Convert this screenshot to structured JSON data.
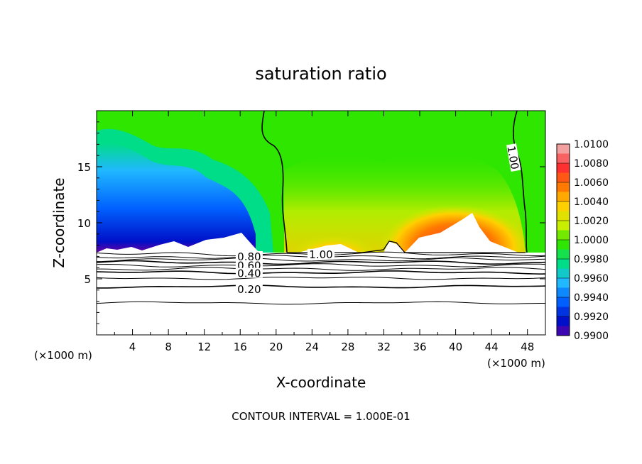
{
  "chart_data": {
    "type": "heatmap",
    "title": "saturation ratio",
    "xlabel": "X-coordinate",
    "ylabel": "Z-coordinate",
    "x_unit_left": "(×1000 m)",
    "x_unit_right": "(×1000 m)",
    "xlim": [
      0,
      50
    ],
    "ylim": [
      0,
      20
    ],
    "x_ticks": [
      4,
      8,
      12,
      16,
      20,
      24,
      28,
      32,
      36,
      40,
      44,
      48
    ],
    "y_ticks": [
      5,
      10,
      15
    ],
    "footer": "CONTOUR INTERVAL = 1.000E-01",
    "colorbar": {
      "levels": [
        1.01,
        1.008,
        1.006,
        1.004,
        1.002,
        1.0,
        0.998,
        0.996,
        0.994,
        0.992,
        0.99
      ],
      "labels": [
        "1.0100",
        "1.0080",
        "1.0060",
        "1.0040",
        "1.0020",
        "1.0000",
        "0.9980",
        "0.9960",
        "0.9940",
        "0.9920",
        "0.9900"
      ],
      "colors": [
        "#f2a0a0",
        "#ff3030",
        "#ff7a00",
        "#ffd000",
        "#c8ee00",
        "#2ee600",
        "#00dd88",
        "#20b8ff",
        "#0060ff",
        "#0010c8",
        "#6a00a0"
      ]
    },
    "contour_labels": [
      {
        "text": "1.00",
        "x": 46.3,
        "y": 15.8
      },
      {
        "text": "1.00",
        "x": 25.0,
        "y": 7.1
      },
      {
        "text": "0.80",
        "x": 17.0,
        "y": 6.9
      },
      {
        "text": "0.60",
        "x": 17.0,
        "y": 6.1
      },
      {
        "text": "0.40",
        "x": 17.0,
        "y": 5.4
      },
      {
        "text": "0.20",
        "x": 17.0,
        "y": 4.0
      }
    ]
  }
}
